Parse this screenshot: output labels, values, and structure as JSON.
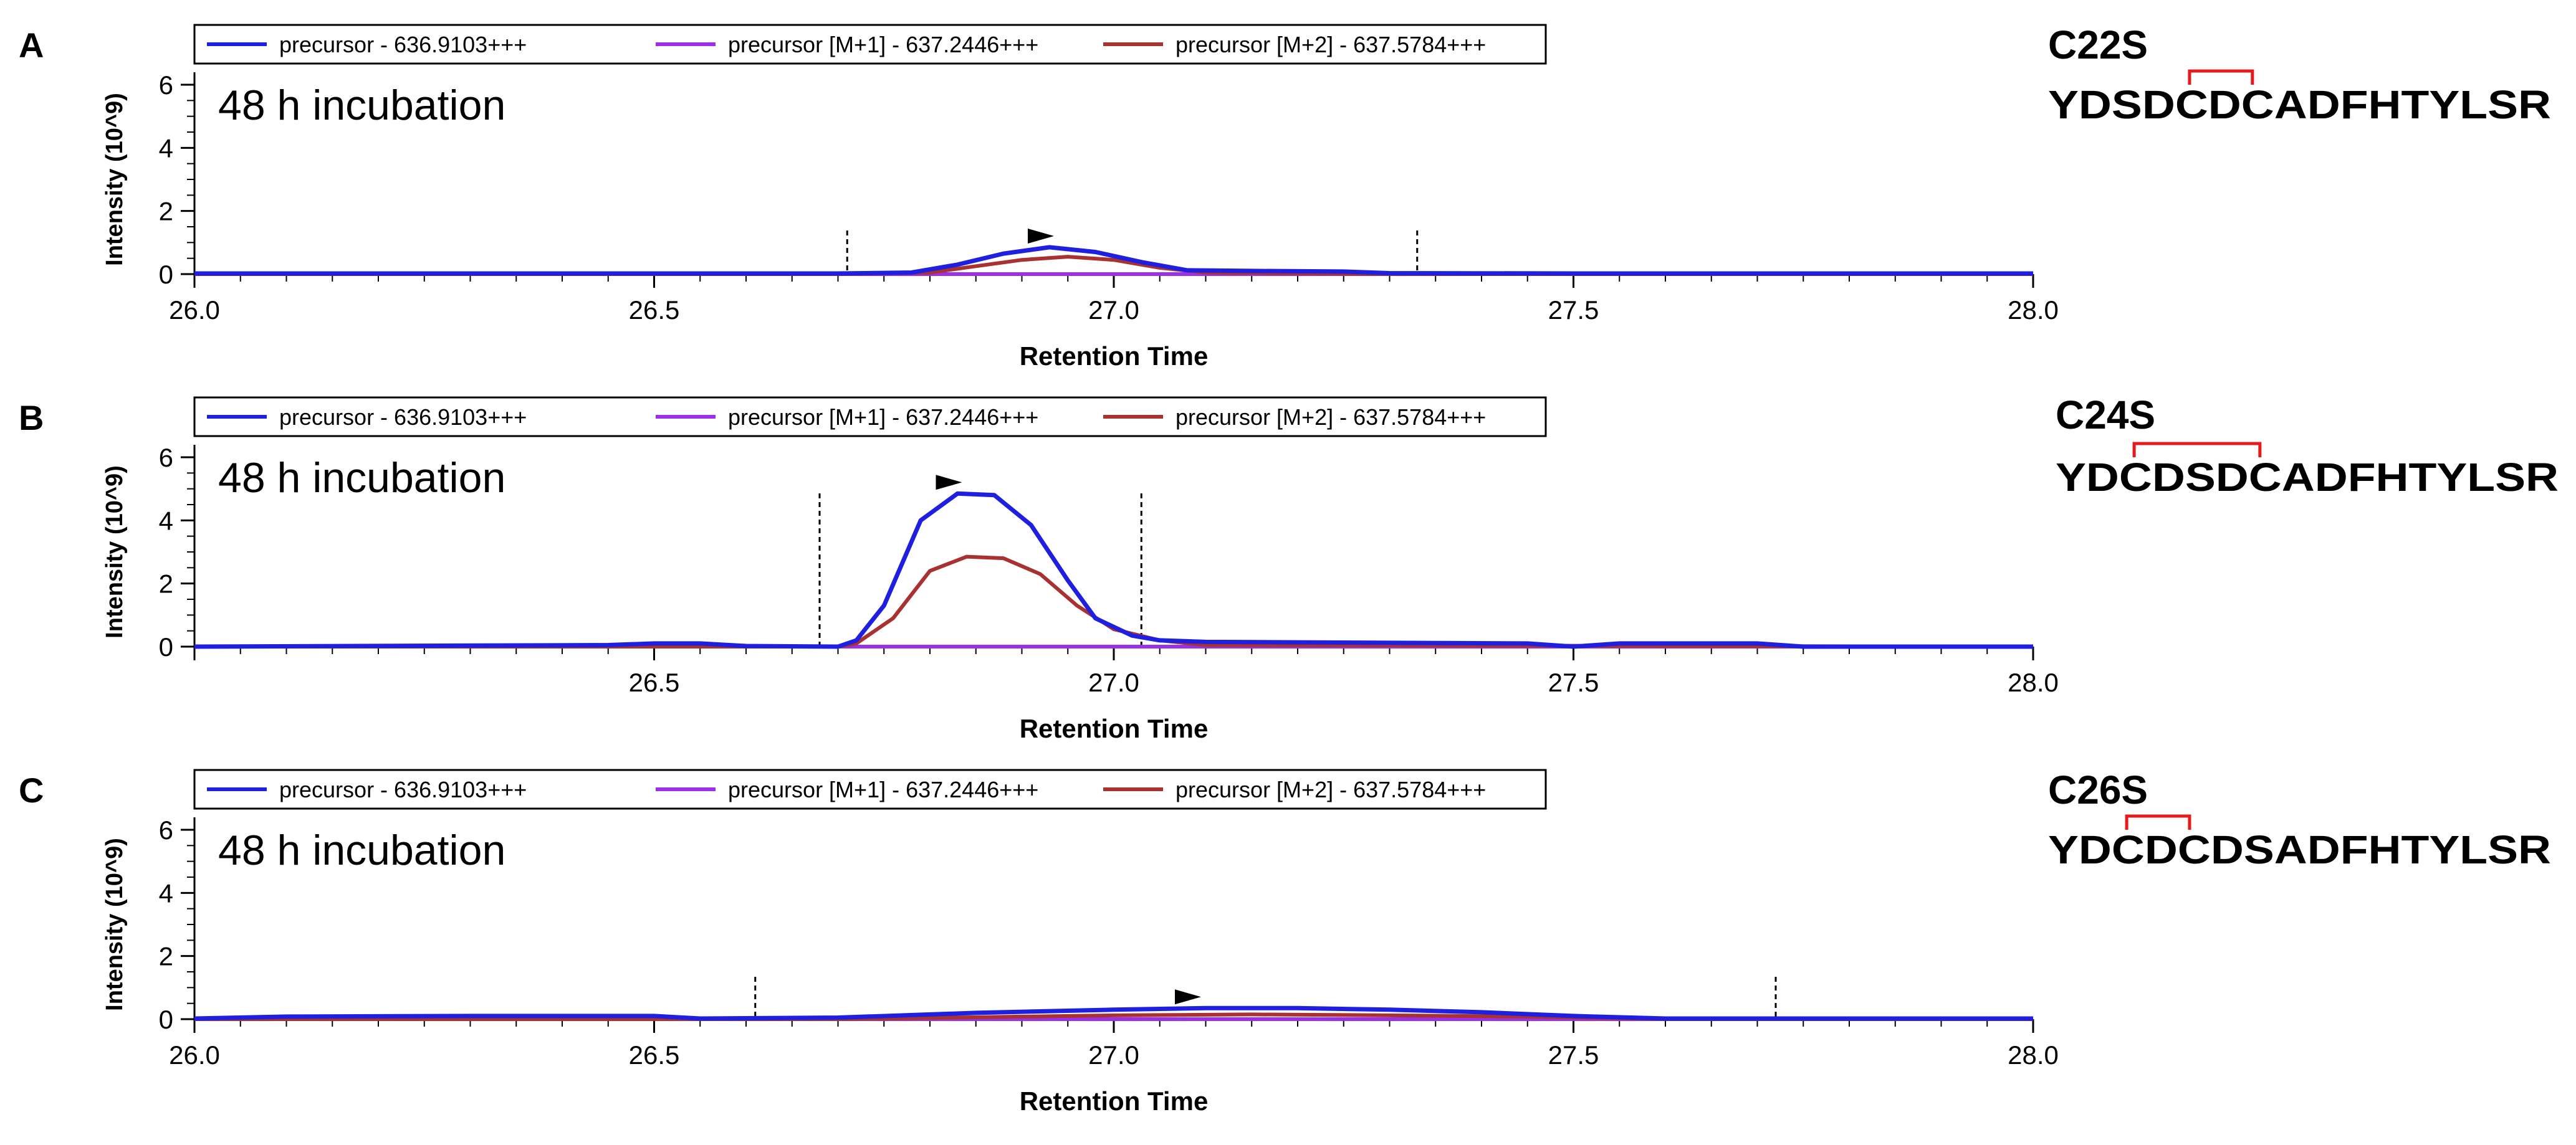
{
  "figure": {
    "legend_labels": [
      "precursor - 636.9103+++",
      "precursor [M+1] - 637.2446+++",
      "precursor [M+2] - 637.5784+++"
    ],
    "series_colors": [
      "#1f1fe0",
      "#9b30e8",
      "#a83232"
    ],
    "peak_line_color": "#e41a1c"
  },
  "chart_data": [
    {
      "type": "line",
      "panel_letter": "A",
      "annotation": "48 h incubation",
      "xlabel": "Retention Time",
      "ylabel": "Intensity (10^9)",
      "xlim": [
        26.0,
        28.0
      ],
      "ylim": [
        0,
        6
      ],
      "xticks": [
        "26.0",
        "26.5",
        "27.0",
        "27.5",
        "28.0"
      ],
      "yticks": [
        "0",
        "2",
        "4",
        "6"
      ],
      "integration_bounds": [
        26.71,
        27.33
      ],
      "apex_marker_rt": 26.92,
      "legend": [
        "precursor - 636.9103+++",
        "precursor [M+1] - 637.2446+++",
        "precursor [M+2] - 637.5784+++"
      ],
      "series": [
        {
          "name": "precursor - 636.9103+++",
          "color": "#1f1fe0",
          "x": [
            26.0,
            26.5,
            26.7,
            26.78,
            26.83,
            26.88,
            26.93,
            26.98,
            27.03,
            27.08,
            27.15,
            27.25,
            27.3,
            27.5,
            28.0
          ],
          "y": [
            0.02,
            0.02,
            0.02,
            0.05,
            0.3,
            0.65,
            0.85,
            0.7,
            0.38,
            0.12,
            0.1,
            0.08,
            0.03,
            0.02,
            0.02
          ]
        },
        {
          "name": "precursor [M+1] - 637.2446+++",
          "color": "#9b30e8",
          "x": [
            26.0,
            28.0
          ],
          "y": [
            0.0,
            0.0
          ]
        },
        {
          "name": "precursor [M+2] - 637.5784+++",
          "color": "#a83232",
          "x": [
            26.0,
            26.5,
            26.7,
            26.8,
            26.85,
            26.9,
            26.95,
            27.0,
            27.05,
            27.1,
            27.3,
            28.0
          ],
          "y": [
            0.0,
            0.0,
            0.0,
            0.05,
            0.25,
            0.45,
            0.55,
            0.45,
            0.2,
            0.05,
            0.0,
            0.0
          ]
        }
      ],
      "peptide_label": "C22S",
      "peptide_sequence": "YDSDCDCADFHTYLSR",
      "disulfide_pair": [
        4,
        6
      ]
    },
    {
      "type": "line",
      "panel_letter": "B",
      "annotation": "48 h incubation",
      "xlabel": "Retention Time",
      "ylabel": "Intensity (10^9)",
      "xlim": [
        26.0,
        28.0
      ],
      "ylim": [
        0,
        6
      ],
      "xticks": [
        "26.5",
        "27.0",
        "27.5",
        "28.0"
      ],
      "yticks": [
        "0",
        "2",
        "4",
        "6"
      ],
      "integration_bounds": [
        26.68,
        27.03
      ],
      "apex_marker_rt": 26.82,
      "legend": [
        "precursor - 636.9103+++",
        "precursor [M+1] - 637.2446+++",
        "precursor [M+2] - 637.5784+++"
      ],
      "series": [
        {
          "name": "precursor - 636.9103+++",
          "color": "#1f1fe0",
          "x": [
            26.0,
            26.45,
            26.5,
            26.55,
            26.6,
            26.7,
            26.72,
            26.75,
            26.79,
            26.83,
            26.87,
            26.91,
            26.95,
            26.98,
            27.02,
            27.05,
            27.1,
            27.45,
            27.5,
            27.55,
            27.7,
            27.75,
            28.0
          ],
          "y": [
            0.0,
            0.05,
            0.1,
            0.1,
            0.02,
            0.0,
            0.2,
            1.3,
            4.0,
            4.85,
            4.8,
            3.85,
            2.1,
            0.9,
            0.35,
            0.2,
            0.15,
            0.1,
            0.0,
            0.1,
            0.1,
            0.0,
            0.0
          ]
        },
        {
          "name": "precursor [M+1] - 637.2446+++",
          "color": "#9b30e8",
          "x": [
            26.0,
            28.0
          ],
          "y": [
            0.0,
            0.0
          ]
        },
        {
          "name": "precursor [M+2] - 637.5784+++",
          "color": "#a83232",
          "x": [
            26.0,
            26.7,
            26.72,
            26.76,
            26.8,
            26.84,
            26.88,
            26.92,
            26.96,
            27.0,
            27.05,
            27.1,
            28.0
          ],
          "y": [
            0.0,
            0.0,
            0.1,
            0.9,
            2.4,
            2.85,
            2.8,
            2.3,
            1.3,
            0.55,
            0.2,
            0.05,
            0.0
          ]
        }
      ],
      "peptide_label": "C24S",
      "peptide_sequence": "YDCDSDCADFHTYLSR",
      "disulfide_pair": [
        2,
        6
      ]
    },
    {
      "type": "line",
      "panel_letter": "C",
      "annotation": "48 h incubation",
      "xlabel": "Retention Time",
      "ylabel": "Intensity (10^9)",
      "xlim": [
        26.0,
        28.0
      ],
      "ylim": [
        0,
        6
      ],
      "xticks": [
        "26.0",
        "26.5",
        "27.0",
        "27.5",
        "28.0"
      ],
      "yticks": [
        "0",
        "2",
        "4",
        "6"
      ],
      "integration_bounds": [
        26.61,
        27.72
      ],
      "apex_marker_rt": 27.08,
      "legend": [
        "precursor - 636.9103+++",
        "precursor [M+1] - 637.2446+++",
        "precursor [M+2] - 637.5784+++"
      ],
      "series": [
        {
          "name": "precursor - 636.9103+++",
          "color": "#1f1fe0",
          "x": [
            26.0,
            26.1,
            26.3,
            26.5,
            26.55,
            26.7,
            26.85,
            27.0,
            27.1,
            27.2,
            27.3,
            27.4,
            27.5,
            27.6,
            28.0
          ],
          "y": [
            0.02,
            0.08,
            0.1,
            0.1,
            0.02,
            0.05,
            0.2,
            0.3,
            0.35,
            0.35,
            0.3,
            0.22,
            0.1,
            0.02,
            0.02
          ]
        },
        {
          "name": "precursor [M+1] - 637.2446+++",
          "color": "#9b30e8",
          "x": [
            26.0,
            28.0
          ],
          "y": [
            0.0,
            0.0
          ]
        },
        {
          "name": "precursor [M+2] - 637.5784+++",
          "color": "#a83232",
          "x": [
            26.0,
            26.7,
            26.9,
            27.0,
            27.15,
            27.3,
            27.45,
            27.6,
            28.0
          ],
          "y": [
            0.0,
            0.0,
            0.08,
            0.12,
            0.15,
            0.12,
            0.08,
            0.0,
            0.0
          ]
        }
      ],
      "peptide_label": "C26S",
      "peptide_sequence": "YDCDCDSADFHTYLSR",
      "disulfide_pair": [
        2,
        4
      ]
    }
  ]
}
